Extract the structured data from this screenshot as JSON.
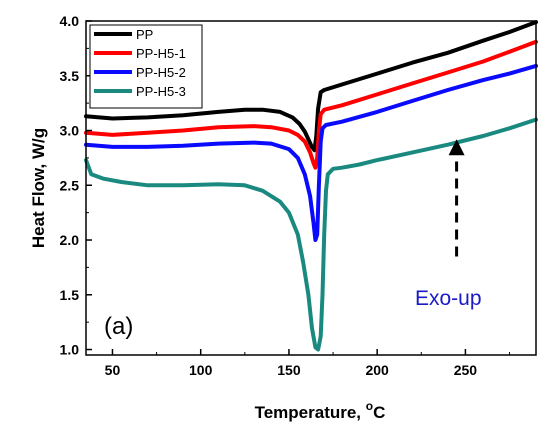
{
  "chart_data": {
    "type": "line",
    "title": "",
    "xlabel": "Temperature, ",
    "xlabel_unit_sup": "o",
    "xlabel_unit": "C",
    "ylabel": "Heat Flow, W/g",
    "xlim": [
      35,
      290
    ],
    "ylim": [
      0.95,
      4.0
    ],
    "xticks": [
      50,
      100,
      150,
      200,
      250
    ],
    "yticks": [
      1.0,
      1.5,
      2.0,
      2.5,
      3.0,
      3.5,
      4.0
    ],
    "ytick_labels": [
      "1.0",
      "1.5",
      "2.0",
      "2.5",
      "3.0",
      "3.5",
      "4.0"
    ],
    "grid": false,
    "legend_position": "top-left",
    "panel_label": "(a)",
    "annotation": {
      "text": "Exo-up",
      "color": "#1a1ac8",
      "arrow": "dashed-up",
      "x": 245,
      "y_from": 1.85,
      "y_to": 2.92
    },
    "series": [
      {
        "name": "PP",
        "color": "#000000",
        "x": [
          35,
          50,
          70,
          90,
          110,
          125,
          135,
          145,
          152,
          156,
          159,
          161,
          163,
          164.5,
          165.5,
          166.5,
          168,
          170,
          180,
          200,
          220,
          240,
          260,
          275,
          290
        ],
        "y": [
          3.13,
          3.11,
          3.12,
          3.14,
          3.17,
          3.19,
          3.19,
          3.17,
          3.12,
          3.06,
          2.99,
          2.92,
          2.85,
          2.82,
          2.95,
          3.2,
          3.35,
          3.37,
          3.42,
          3.52,
          3.62,
          3.71,
          3.82,
          3.9,
          3.99
        ]
      },
      {
        "name": "PP-H5-1",
        "color": "#ff0000",
        "x": [
          35,
          50,
          70,
          90,
          110,
          130,
          140,
          150,
          155,
          159,
          162,
          164,
          165,
          166,
          167,
          168,
          170,
          180,
          200,
          220,
          240,
          260,
          275,
          290
        ],
        "y": [
          2.98,
          2.96,
          2.98,
          3.0,
          3.03,
          3.04,
          3.03,
          3.0,
          2.96,
          2.9,
          2.8,
          2.7,
          2.66,
          2.75,
          3.0,
          3.15,
          3.19,
          3.23,
          3.33,
          3.43,
          3.53,
          3.63,
          3.72,
          3.81
        ]
      },
      {
        "name": "PP-H5-2",
        "color": "#0a0aff",
        "x": [
          35,
          50,
          70,
          90,
          110,
          130,
          140,
          150,
          155,
          159,
          162,
          164,
          165,
          166,
          167,
          168,
          169,
          171,
          180,
          200,
          220,
          240,
          260,
          275,
          290
        ],
        "y": [
          2.87,
          2.85,
          2.85,
          2.86,
          2.88,
          2.89,
          2.88,
          2.83,
          2.75,
          2.6,
          2.4,
          2.15,
          2.0,
          2.05,
          2.5,
          2.9,
          3.02,
          3.05,
          3.08,
          3.17,
          3.27,
          3.37,
          3.46,
          3.52,
          3.59
        ]
      },
      {
        "name": "PP-H5-3",
        "color": "#1a8a80",
        "x": [
          35,
          38,
          45,
          55,
          70,
          90,
          110,
          125,
          135,
          145,
          150,
          155,
          158,
          161,
          163,
          165,
          166.5,
          168,
          169,
          170,
          171,
          172,
          175,
          180,
          190,
          200,
          220,
          240,
          260,
          275,
          290
        ],
        "y": [
          2.73,
          2.6,
          2.56,
          2.53,
          2.5,
          2.5,
          2.51,
          2.5,
          2.45,
          2.35,
          2.25,
          2.05,
          1.8,
          1.5,
          1.2,
          1.02,
          1.0,
          1.12,
          1.5,
          2.05,
          2.45,
          2.6,
          2.65,
          2.66,
          2.69,
          2.73,
          2.8,
          2.87,
          2.95,
          3.02,
          3.1
        ]
      }
    ]
  }
}
